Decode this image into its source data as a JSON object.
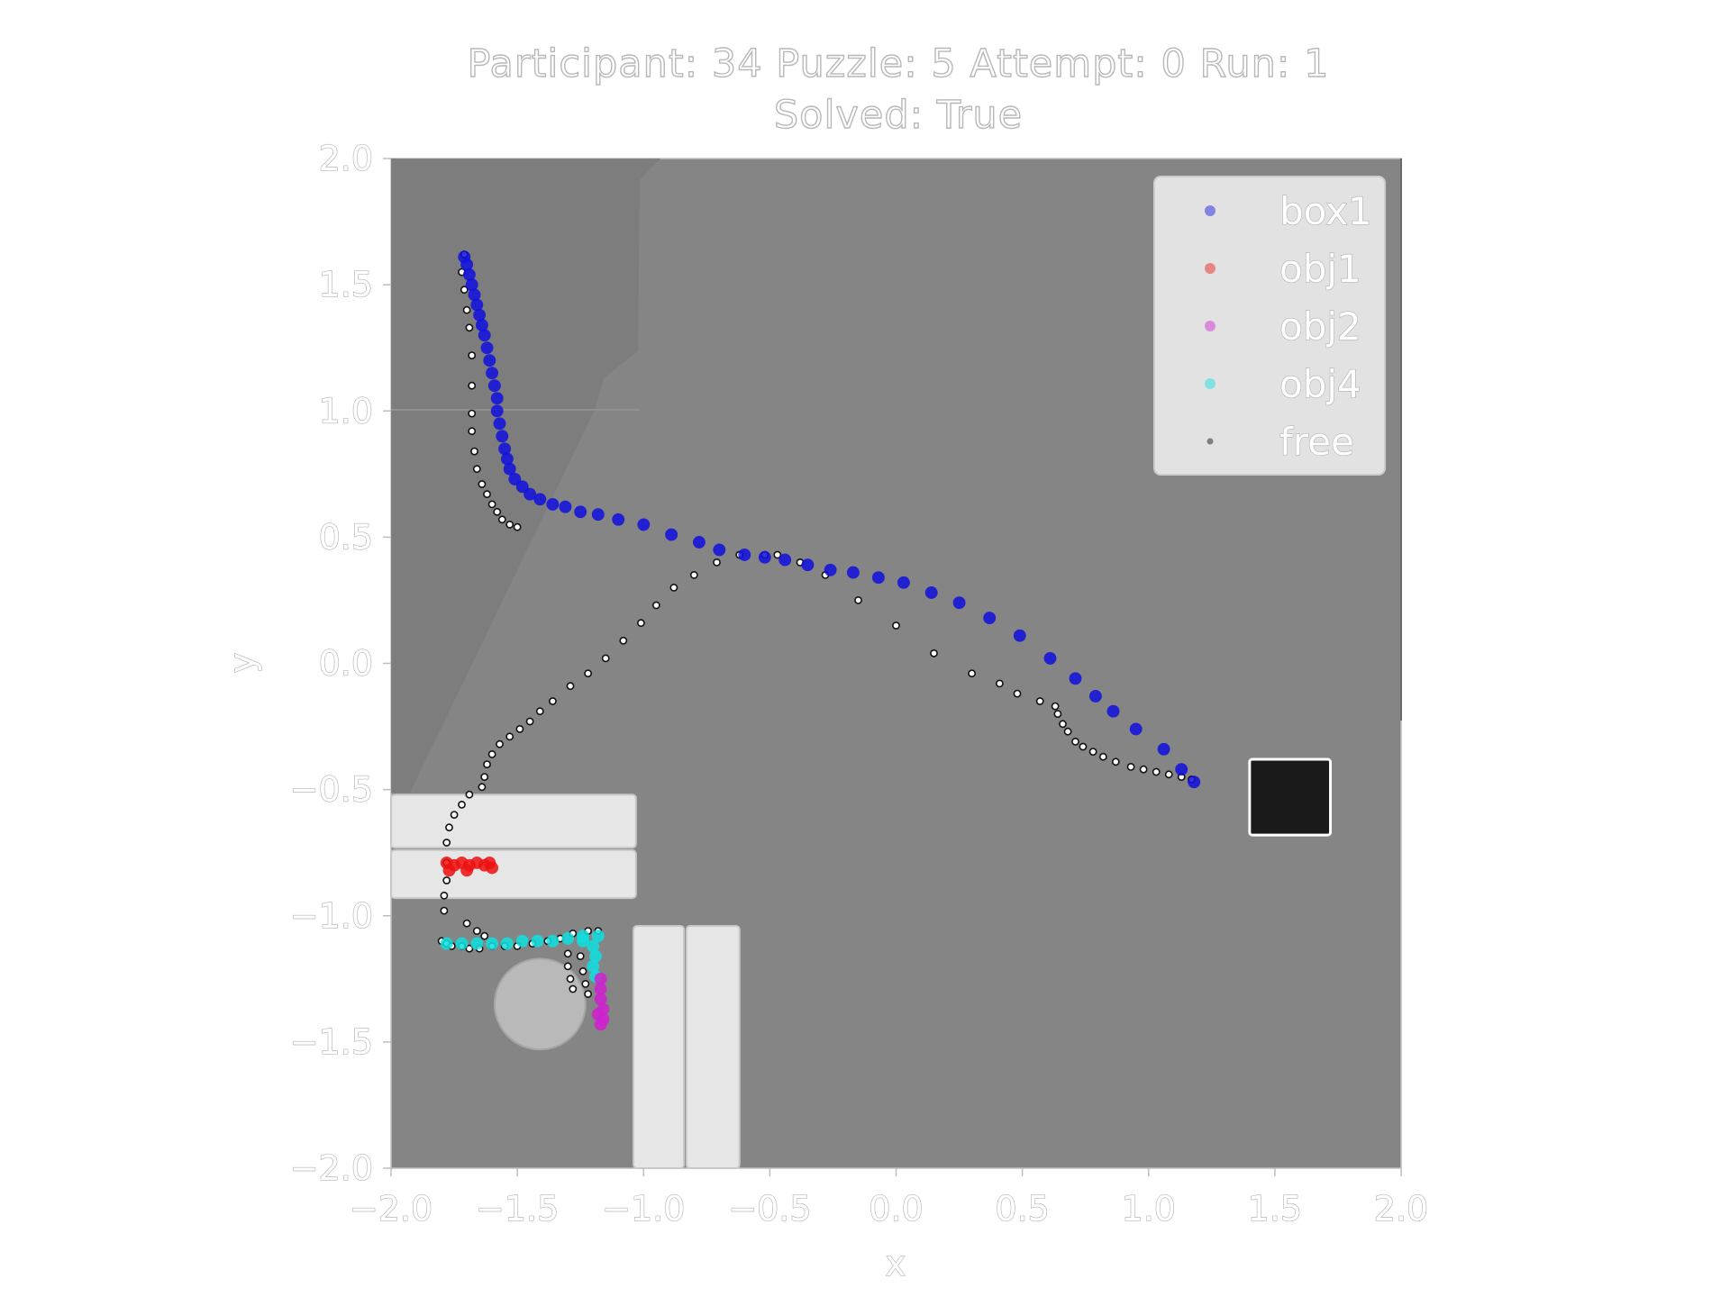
{
  "chart_data": {
    "type": "scatter",
    "title_line1": "Participant: 34 Puzzle: 5 Attempt: 0 Run: 1",
    "title_line2": "Solved: True",
    "xlabel": "x",
    "ylabel": "y",
    "xlim": [
      -2.0,
      2.0
    ],
    "ylim": [
      -2.0,
      2.0
    ],
    "xticks": [
      "−2.0",
      "−1.5",
      "−1.0",
      "−0.5",
      "0.0",
      "0.5",
      "1.0",
      "1.5",
      "2.0"
    ],
    "yticks": [
      "2.0",
      "1.5",
      "1.0",
      "0.5",
      "0.0",
      "−0.5",
      "−1.0",
      "−1.5",
      "−2.0"
    ],
    "legend_position": "top-right",
    "colors": {
      "box1": "#1010e0",
      "obj1": "#ee1111",
      "obj2": "#d020d0",
      "obj4": "#10e0e0",
      "free": "#111111",
      "background": "#858585",
      "obstacle": "#e6e6e6",
      "goal": "#1a1a1a"
    },
    "series": [
      {
        "name": "box1",
        "points": [
          [
            -1.71,
            1.61
          ],
          [
            -1.7,
            1.58
          ],
          [
            -1.69,
            1.54
          ],
          [
            -1.68,
            1.5
          ],
          [
            -1.67,
            1.46
          ],
          [
            -1.66,
            1.42
          ],
          [
            -1.65,
            1.38
          ],
          [
            -1.64,
            1.34
          ],
          [
            -1.63,
            1.3
          ],
          [
            -1.62,
            1.25
          ],
          [
            -1.61,
            1.2
          ],
          [
            -1.6,
            1.15
          ],
          [
            -1.59,
            1.1
          ],
          [
            -1.58,
            1.05
          ],
          [
            -1.58,
            1.0
          ],
          [
            -1.57,
            0.95
          ],
          [
            -1.56,
            0.9
          ],
          [
            -1.55,
            0.85
          ],
          [
            -1.54,
            0.81
          ],
          [
            -1.53,
            0.77
          ],
          [
            -1.51,
            0.73
          ],
          [
            -1.48,
            0.7
          ],
          [
            -1.45,
            0.67
          ],
          [
            -1.41,
            0.65
          ],
          [
            -1.36,
            0.63
          ],
          [
            -1.31,
            0.62
          ],
          [
            -1.25,
            0.6
          ],
          [
            -1.18,
            0.59
          ],
          [
            -1.1,
            0.57
          ],
          [
            -1.0,
            0.55
          ],
          [
            -0.89,
            0.51
          ],
          [
            -0.78,
            0.48
          ],
          [
            -0.7,
            0.45
          ],
          [
            -0.6,
            0.43
          ],
          [
            -0.52,
            0.42
          ],
          [
            -0.44,
            0.41
          ],
          [
            -0.35,
            0.39
          ],
          [
            -0.26,
            0.37
          ],
          [
            -0.17,
            0.36
          ],
          [
            -0.07,
            0.34
          ],
          [
            0.03,
            0.32
          ],
          [
            0.14,
            0.28
          ],
          [
            0.25,
            0.24
          ],
          [
            0.37,
            0.18
          ],
          [
            0.49,
            0.11
          ],
          [
            0.61,
            0.02
          ],
          [
            0.71,
            -0.06
          ],
          [
            0.79,
            -0.13
          ],
          [
            0.86,
            -0.19
          ],
          [
            0.95,
            -0.26
          ],
          [
            1.06,
            -0.34
          ],
          [
            1.13,
            -0.42
          ],
          [
            1.18,
            -0.47
          ]
        ]
      },
      {
        "name": "obj1",
        "points": [
          [
            -1.78,
            -0.79
          ],
          [
            -1.75,
            -0.8
          ],
          [
            -1.72,
            -0.79
          ],
          [
            -1.69,
            -0.8
          ],
          [
            -1.66,
            -0.79
          ],
          [
            -1.63,
            -0.8
          ],
          [
            -1.61,
            -0.79
          ],
          [
            -1.6,
            -0.81
          ],
          [
            -1.77,
            -0.82
          ],
          [
            -1.7,
            -0.82
          ]
        ]
      },
      {
        "name": "obj4",
        "points": [
          [
            -1.78,
            -1.11
          ],
          [
            -1.72,
            -1.11
          ],
          [
            -1.66,
            -1.11
          ],
          [
            -1.6,
            -1.11
          ],
          [
            -1.54,
            -1.11
          ],
          [
            -1.48,
            -1.1
          ],
          [
            -1.42,
            -1.1
          ],
          [
            -1.36,
            -1.1
          ],
          [
            -1.3,
            -1.09
          ],
          [
            -1.24,
            -1.08
          ],
          [
            -1.18,
            -1.08
          ],
          [
            -1.2,
            -1.12
          ],
          [
            -1.19,
            -1.16
          ],
          [
            -1.2,
            -1.2
          ],
          [
            -1.19,
            -1.24
          ],
          [
            -1.24,
            -1.1
          ]
        ]
      },
      {
        "name": "obj2",
        "points": [
          [
            -1.17,
            -1.25
          ],
          [
            -1.17,
            -1.29
          ],
          [
            -1.17,
            -1.33
          ],
          [
            -1.16,
            -1.37
          ],
          [
            -1.16,
            -1.41
          ],
          [
            -1.17,
            -1.43
          ],
          [
            -1.18,
            -1.39
          ]
        ]
      },
      {
        "name": "free",
        "points": [
          [
            -1.71,
            1.62
          ],
          [
            -1.72,
            1.55
          ],
          [
            -1.71,
            1.48
          ],
          [
            -1.7,
            1.4
          ],
          [
            -1.69,
            1.33
          ],
          [
            -1.68,
            1.22
          ],
          [
            -1.68,
            1.1
          ],
          [
            -1.68,
            0.99
          ],
          [
            -1.68,
            0.92
          ],
          [
            -1.67,
            0.84
          ],
          [
            -1.66,
            0.77
          ],
          [
            -1.64,
            0.71
          ],
          [
            -1.62,
            0.67
          ],
          [
            -1.6,
            0.63
          ],
          [
            -1.58,
            0.6
          ],
          [
            -1.56,
            0.57
          ],
          [
            -1.53,
            0.55
          ],
          [
            -1.5,
            0.54
          ],
          [
            -1.8,
            -1.1
          ],
          [
            -1.78,
            -1.11
          ],
          [
            -1.76,
            -1.12
          ],
          [
            -1.72,
            -1.12
          ],
          [
            -1.69,
            -1.13
          ],
          [
            -1.65,
            -1.13
          ],
          [
            -1.6,
            -1.12
          ],
          [
            -1.55,
            -1.12
          ],
          [
            -1.5,
            -1.12
          ],
          [
            -1.44,
            -1.11
          ],
          [
            -1.38,
            -1.1
          ],
          [
            -1.33,
            -1.09
          ],
          [
            -1.28,
            -1.07
          ],
          [
            -1.22,
            -1.06
          ],
          [
            -1.18,
            -1.06
          ],
          [
            -1.3,
            -1.15
          ],
          [
            -1.3,
            -1.2
          ],
          [
            -1.29,
            -1.25
          ],
          [
            -1.28,
            -1.29
          ],
          [
            -1.25,
            -1.16
          ],
          [
            -1.24,
            -1.22
          ],
          [
            -1.23,
            -1.27
          ],
          [
            -1.22,
            -1.31
          ],
          [
            -1.7,
            -1.03
          ],
          [
            -1.66,
            -1.06
          ],
          [
            -1.63,
            -1.08
          ],
          [
            -1.79,
            -0.98
          ],
          [
            -1.79,
            -0.92
          ],
          [
            -1.78,
            -0.86
          ],
          [
            -1.78,
            -0.79
          ],
          [
            -1.78,
            -0.71
          ],
          [
            -1.77,
            -0.65
          ],
          [
            -1.75,
            -0.6
          ],
          [
            -1.72,
            -0.56
          ],
          [
            -1.69,
            -0.52
          ],
          [
            -1.64,
            -0.49
          ],
          [
            -1.63,
            -0.45
          ],
          [
            -1.62,
            -0.4
          ],
          [
            -1.6,
            -0.36
          ],
          [
            -1.57,
            -0.32
          ],
          [
            -1.53,
            -0.29
          ],
          [
            -1.49,
            -0.26
          ],
          [
            -1.45,
            -0.23
          ],
          [
            -1.41,
            -0.19
          ],
          [
            -1.36,
            -0.15
          ],
          [
            -1.29,
            -0.09
          ],
          [
            -1.22,
            -0.04
          ],
          [
            -1.15,
            0.02
          ],
          [
            -1.08,
            0.09
          ],
          [
            -1.01,
            0.16
          ],
          [
            -0.95,
            0.23
          ],
          [
            -0.88,
            0.3
          ],
          [
            -0.8,
            0.35
          ],
          [
            -0.71,
            0.4
          ],
          [
            -0.62,
            0.43
          ],
          [
            -0.52,
            0.43
          ],
          [
            -0.47,
            0.43
          ],
          [
            -0.38,
            0.4
          ],
          [
            -0.28,
            0.35
          ],
          [
            -0.15,
            0.25
          ],
          [
            0.0,
            0.15
          ],
          [
            0.15,
            0.04
          ],
          [
            0.3,
            -0.04
          ],
          [
            0.41,
            -0.08
          ],
          [
            0.48,
            -0.12
          ],
          [
            0.57,
            -0.15
          ],
          [
            0.63,
            -0.17
          ],
          [
            0.64,
            -0.2
          ],
          [
            0.66,
            -0.24
          ],
          [
            0.68,
            -0.27
          ],
          [
            0.71,
            -0.31
          ],
          [
            0.74,
            -0.33
          ],
          [
            0.78,
            -0.35
          ],
          [
            0.82,
            -0.37
          ],
          [
            0.87,
            -0.39
          ],
          [
            0.93,
            -0.41
          ],
          [
            0.98,
            -0.42
          ],
          [
            1.03,
            -0.43
          ],
          [
            1.08,
            -0.44
          ],
          [
            1.13,
            -0.45
          ],
          [
            1.17,
            -0.46
          ]
        ]
      }
    ],
    "background_regions": [
      {
        "kind": "obstacle",
        "x": [
          -2.0,
          -1.03
        ],
        "y": [
          -0.73,
          -0.52
        ]
      },
      {
        "kind": "obstacle",
        "x": [
          -2.0,
          -1.03
        ],
        "y": [
          -0.93,
          -0.74
        ]
      },
      {
        "kind": "obstacle",
        "x": [
          -1.04,
          -0.84
        ],
        "y": [
          -2.0,
          -1.04
        ]
      },
      {
        "kind": "obstacle",
        "x": [
          -0.83,
          -0.62
        ],
        "y": [
          -2.0,
          -1.04
        ]
      },
      {
        "kind": "disc",
        "cx": -1.41,
        "cy": -1.35,
        "r": 0.18
      },
      {
        "kind": "goal",
        "x": [
          1.4,
          1.72
        ],
        "y": [
          -0.68,
          -0.38
        ]
      }
    ]
  }
}
